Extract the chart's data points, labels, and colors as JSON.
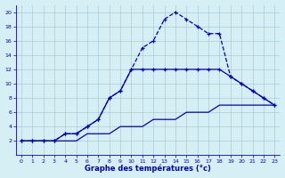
{
  "xlabel": "Graphe des températures (°c)",
  "background_color": "#d6eff5",
  "grid_color": "#b8d8e0",
  "line_color": "#0000cc",
  "xlim": [
    -0.5,
    23.5
  ],
  "ylim": [
    0,
    21
  ],
  "xticks": [
    0,
    1,
    2,
    3,
    4,
    5,
    6,
    7,
    8,
    9,
    10,
    11,
    12,
    13,
    14,
    15,
    16,
    17,
    18,
    19,
    20,
    21,
    22,
    23
  ],
  "yticks": [
    2,
    4,
    6,
    8,
    10,
    12,
    14,
    16,
    18,
    20
  ],
  "series1_x": [
    0,
    1,
    2,
    3,
    4,
    5,
    6,
    7,
    8,
    9,
    10,
    11,
    12,
    13,
    14,
    15,
    16,
    17,
    18,
    19,
    20,
    21,
    22,
    23
  ],
  "series1_y": [
    2,
    2,
    2,
    2,
    3,
    3,
    4,
    5,
    8,
    9,
    12,
    15,
    16,
    19,
    20,
    19,
    18,
    17,
    17,
    11,
    10,
    9,
    8,
    7
  ],
  "series2_x": [
    0,
    1,
    2,
    3,
    4,
    5,
    6,
    7,
    8,
    9,
    10,
    11,
    12,
    13,
    14,
    15,
    16,
    17,
    18,
    19,
    20,
    21,
    22,
    23
  ],
  "series2_y": [
    2,
    2,
    2,
    2,
    3,
    3,
    4,
    5,
    8,
    9,
    12,
    12,
    12,
    12,
    12,
    12,
    12,
    12,
    12,
    11,
    10,
    9,
    8,
    7
  ],
  "series3_x": [
    0,
    1,
    2,
    3,
    4,
    5,
    6,
    7,
    8,
    9,
    10,
    11,
    12,
    13,
    14,
    15,
    16,
    17,
    18,
    19,
    20,
    21,
    22,
    23
  ],
  "series3_y": [
    2,
    2,
    2,
    2,
    2,
    2,
    3,
    3,
    3,
    4,
    4,
    4,
    5,
    5,
    5,
    6,
    6,
    6,
    7,
    7,
    7,
    7,
    7,
    7
  ]
}
